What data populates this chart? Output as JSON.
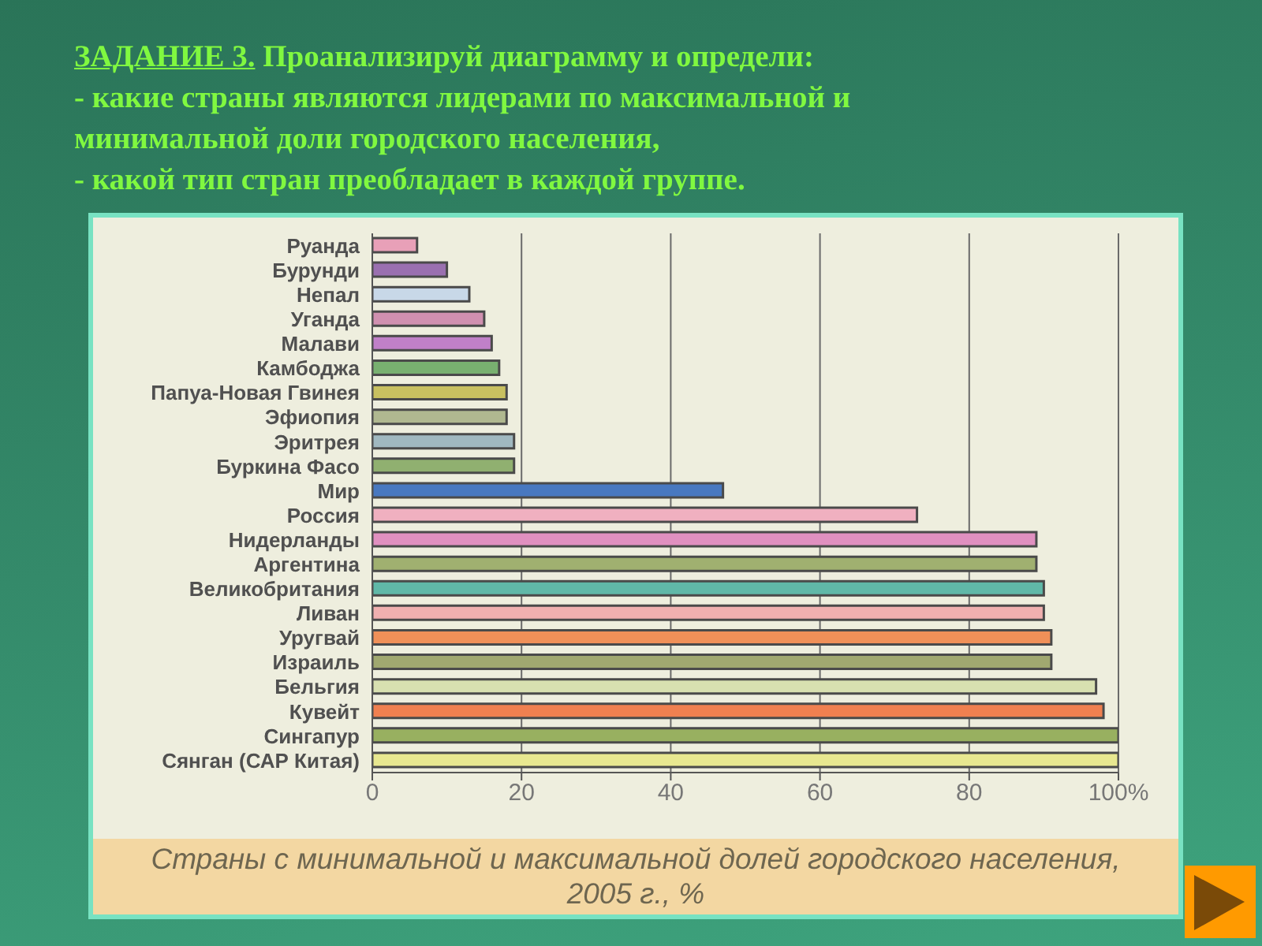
{
  "chart_data": {
    "type": "bar",
    "orientation": "horizontal",
    "title": "Страны с минимальной и максимальной долей городского населения, 2005 г., %",
    "annotations": [
      "ЗАДАНИЕ 3.",
      "Проанализируй диаграмму и определи:",
      "- какие страны являются лидерами по максимальной и минимальной доли городского населения,",
      "- какой тип стран преобладает в каждой группе."
    ],
    "categories": [
      "Руанда",
      "Бурунди",
      "Непал",
      "Уганда",
      "Малави",
      "Камбоджа",
      "Папуа-Новая Гвинея",
      "Эфиопия",
      "Эритрея",
      "Буркина Фасо",
      "Мир",
      "Россия",
      "Нидерланды",
      "Аргентина",
      "Великобритания",
      "Ливан",
      "Уругвай",
      "Израиль",
      "Бельгия",
      "Кувейт",
      "Сингапур",
      "Сянган (САР Китая)"
    ],
    "values": [
      6,
      10,
      13,
      15,
      16,
      17,
      18,
      18,
      19,
      19,
      47,
      73,
      89,
      89,
      90,
      90,
      91,
      91,
      97,
      98,
      100,
      100
    ],
    "colors": [
      "#e8a0b8",
      "#9a70b0",
      "#c8d8e8",
      "#d090b0",
      "#c080c8",
      "#78b070",
      "#c8c060",
      "#b0b890",
      "#a0b8c0",
      "#90b070",
      "#4878c0",
      "#f0b0c0",
      "#e090c0",
      "#a0b070",
      "#60b8a8",
      "#f0b0b0",
      "#f09058",
      "#a0a870",
      "#d8e0b0",
      "#f08050",
      "#98b060",
      "#e8e890"
    ],
    "xlim": [
      0,
      100
    ],
    "xticks": [
      0,
      20,
      40,
      60,
      80,
      {
        "value": 100,
        "label": "100%"
      }
    ],
    "grid": "x"
  }
}
